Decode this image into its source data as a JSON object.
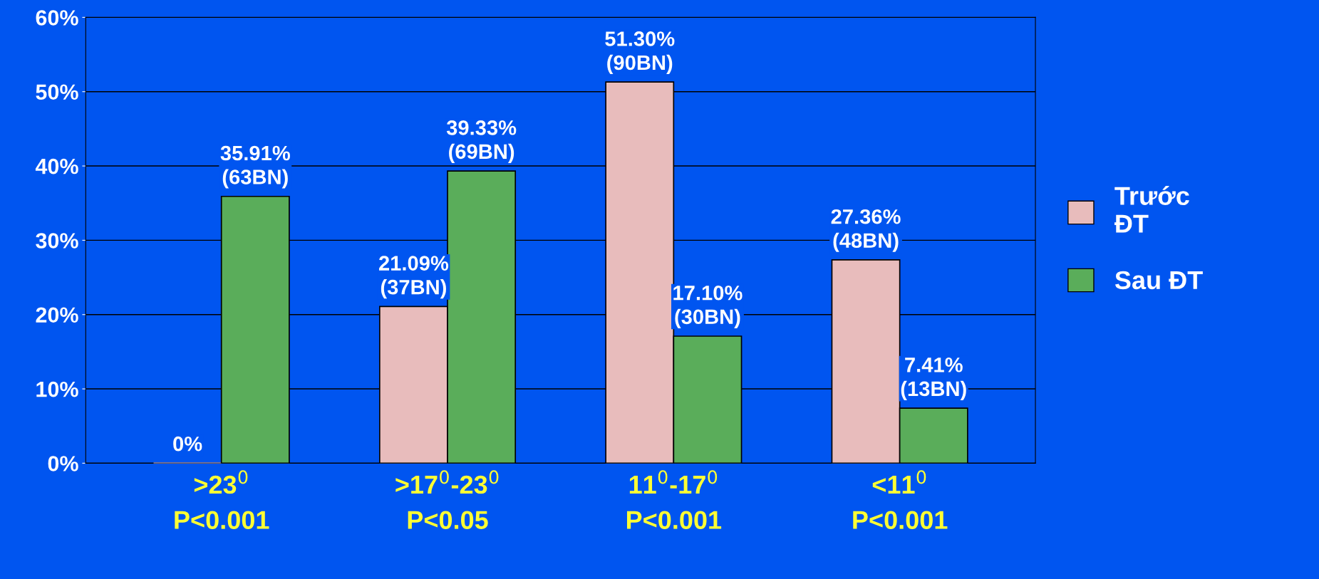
{
  "chart_data": {
    "type": "bar",
    "categories": [
      ">23$^{0}$\nP<0.001",
      ">17$^{0}$-23$^{0}$\nP<0.05",
      "11$^{0}$-17$^{0}$\nP<0.001",
      "<11$^{0}$\nP<0.001"
    ],
    "series": [
      {
        "name": "Trước\nĐT",
        "color": "#e8bcbc",
        "values": [
          0,
          21.09,
          51.3,
          27.36
        ],
        "value_labels": [
          "0%",
          "21.09%\n(37BN)",
          "51.30%\n(90BN)",
          "27.36%\n(48BN)"
        ]
      },
      {
        "name": "Sau ĐT",
        "color": "#5aad5a",
        "values": [
          35.91,
          39.33,
          17.1,
          7.41
        ],
        "value_labels": [
          "35.91%\n(63BN)",
          "39.33%\n(69BN)",
          "17.10%\n(30BN)",
          "7.41%\n(13BN)"
        ]
      }
    ],
    "ylim": [
      0,
      60
    ],
    "yticks": [
      {
        "value": 0,
        "label": "0%"
      },
      {
        "value": 10,
        "label": "10%"
      },
      {
        "value": 20,
        "label": "20%"
      },
      {
        "value": 30,
        "label": "30%"
      },
      {
        "value": 40,
        "label": "40%"
      },
      {
        "value": 50,
        "label": "50%"
      },
      {
        "value": 60,
        "label": "60%"
      }
    ],
    "grid": "y",
    "legend": "right"
  }
}
